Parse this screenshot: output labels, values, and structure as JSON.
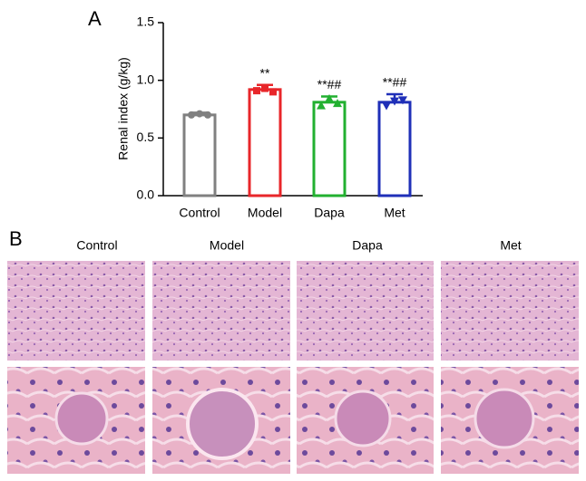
{
  "chart_data": {
    "type": "bar",
    "panel": "A",
    "y_label": "Renal index (g/kg)",
    "categories": [
      "Control",
      "Model",
      "Dapa",
      "Met"
    ],
    "values": [
      0.7,
      0.92,
      0.81,
      0.81
    ],
    "errors": [
      0.02,
      0.04,
      0.05,
      0.07
    ],
    "points": [
      [
        0.7,
        0.71,
        0.7
      ],
      [
        0.91,
        0.93,
        0.9
      ],
      [
        0.78,
        0.84,
        0.8
      ],
      [
        0.78,
        0.82,
        0.83
      ]
    ],
    "colors": [
      "#808080",
      "#e8262a",
      "#22b030",
      "#1f2fb8"
    ],
    "annotations": [
      null,
      "**",
      "**##",
      "**##"
    ],
    "ylim": [
      0,
      1.5
    ],
    "yticks": [
      {
        "value": 0,
        "label": "0.0"
      },
      {
        "value": 0.5,
        "label": "0.5"
      },
      {
        "value": 1,
        "label": "1.0"
      },
      {
        "value": 1.5,
        "label": "1.5"
      }
    ]
  },
  "panel_b": {
    "panel": "B",
    "columns": [
      "Control",
      "Model",
      "Dapa",
      "Met"
    ]
  }
}
